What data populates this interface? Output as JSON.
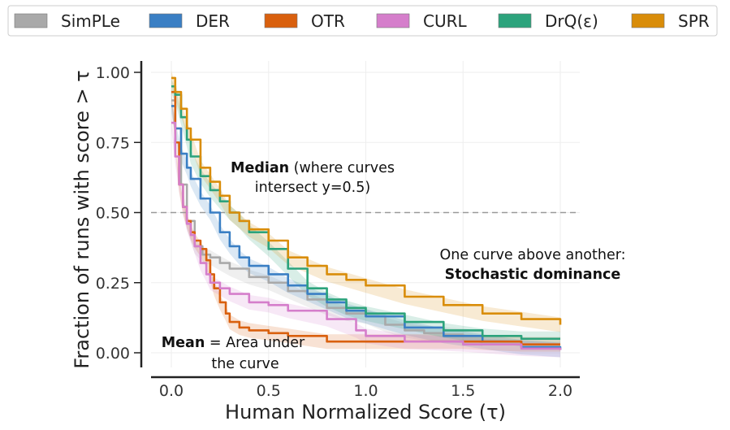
{
  "chart_data": {
    "type": "line",
    "xlabel": "Human Normalized Score (τ)",
    "ylabel": "Fraction of runs with score > τ",
    "xlim": [
      -0.1,
      2.1
    ],
    "ylim": [
      -0.02,
      1.05
    ],
    "xticks": [
      "0.0",
      "0.5",
      "1.0",
      "1.5",
      "2.0"
    ],
    "yticks": [
      "0.00",
      "0.25",
      "0.50",
      "0.75",
      "1.00"
    ],
    "grid": true,
    "legend_position": "top",
    "reference_line": {
      "y": 0.5,
      "style": "dashed"
    },
    "series": [
      {
        "name": "SimPLe",
        "color": "#a9a9a9",
        "x": [
          0.0,
          0.02,
          0.05,
          0.08,
          0.12,
          0.16,
          0.2,
          0.25,
          0.3,
          0.4,
          0.5,
          0.6,
          0.7,
          0.8,
          0.9,
          1.0,
          1.1,
          1.2,
          1.3,
          1.4,
          1.5,
          1.6
        ],
        "y": [
          0.9,
          0.8,
          0.6,
          0.47,
          0.38,
          0.35,
          0.34,
          0.32,
          0.3,
          0.27,
          0.25,
          0.22,
          0.19,
          0.16,
          0.14,
          0.13,
          0.1,
          0.08,
          0.07,
          0.065,
          0.06,
          0.05
        ]
      },
      {
        "name": "DER",
        "color": "#3a7fc4",
        "x": [
          0.0,
          0.02,
          0.05,
          0.08,
          0.1,
          0.15,
          0.2,
          0.25,
          0.3,
          0.35,
          0.4,
          0.5,
          0.6,
          0.7,
          0.8,
          0.9,
          1.0,
          1.2,
          1.4,
          1.6,
          1.8,
          2.0
        ],
        "y": [
          0.88,
          0.8,
          0.71,
          0.66,
          0.62,
          0.55,
          0.5,
          0.43,
          0.38,
          0.34,
          0.31,
          0.28,
          0.24,
          0.21,
          0.18,
          0.15,
          0.13,
          0.09,
          0.06,
          0.04,
          0.02,
          0.01
        ]
      },
      {
        "name": "OTR",
        "color": "#d9600e",
        "x": [
          0.0,
          0.02,
          0.04,
          0.06,
          0.08,
          0.1,
          0.12,
          0.15,
          0.18,
          0.2,
          0.22,
          0.25,
          0.28,
          0.3,
          0.35,
          0.4,
          0.5,
          0.6,
          0.8,
          1.0,
          1.2,
          1.5,
          1.8,
          2.0
        ],
        "y": [
          0.93,
          0.75,
          0.6,
          0.52,
          0.47,
          0.43,
          0.4,
          0.37,
          0.33,
          0.28,
          0.23,
          0.18,
          0.14,
          0.11,
          0.09,
          0.08,
          0.07,
          0.06,
          0.04,
          0.04,
          0.04,
          0.04,
          0.03,
          0.03
        ]
      },
      {
        "name": "CURL",
        "color": "#d57ecb",
        "x": [
          0.0,
          0.02,
          0.04,
          0.06,
          0.08,
          0.1,
          0.12,
          0.15,
          0.18,
          0.2,
          0.25,
          0.3,
          0.4,
          0.5,
          0.6,
          0.8,
          0.95,
          1.0,
          1.2,
          1.5,
          1.8,
          2.0
        ],
        "y": [
          0.82,
          0.7,
          0.6,
          0.52,
          0.46,
          0.42,
          0.38,
          0.32,
          0.28,
          0.25,
          0.23,
          0.21,
          0.18,
          0.17,
          0.15,
          0.12,
          0.08,
          0.06,
          0.04,
          0.03,
          0.015,
          0.01
        ]
      },
      {
        "name": "DrQ(ε)",
        "color": "#2ca37c",
        "x": [
          0.0,
          0.02,
          0.05,
          0.08,
          0.1,
          0.15,
          0.2,
          0.25,
          0.3,
          0.35,
          0.4,
          0.5,
          0.6,
          0.7,
          0.8,
          0.9,
          1.0,
          1.2,
          1.4,
          1.6,
          1.8,
          2.0
        ],
        "y": [
          0.95,
          0.92,
          0.84,
          0.76,
          0.7,
          0.63,
          0.58,
          0.54,
          0.5,
          0.47,
          0.43,
          0.37,
          0.3,
          0.23,
          0.19,
          0.16,
          0.14,
          0.11,
          0.08,
          0.06,
          0.05,
          0.05
        ]
      },
      {
        "name": "SPR",
        "color": "#d98d0a",
        "x": [
          0.0,
          0.02,
          0.05,
          0.08,
          0.1,
          0.15,
          0.2,
          0.25,
          0.3,
          0.35,
          0.4,
          0.5,
          0.6,
          0.7,
          0.8,
          0.9,
          1.0,
          1.2,
          1.4,
          1.6,
          1.8,
          2.0
        ],
        "y": [
          0.98,
          0.93,
          0.87,
          0.8,
          0.76,
          0.66,
          0.61,
          0.56,
          0.5,
          0.47,
          0.44,
          0.4,
          0.34,
          0.31,
          0.28,
          0.26,
          0.24,
          0.2,
          0.17,
          0.14,
          0.12,
          0.1
        ]
      }
    ]
  },
  "annotations": {
    "median_bold": "Median",
    "median_rest": " (where curves",
    "median_line2": "intersect y=0.5)",
    "dominance_line1": "One curve above another:",
    "dominance_line2": "Stochastic dominance",
    "mean_bold": "Mean",
    "mean_rest": " = Area under",
    "mean_line2": "the curve"
  }
}
